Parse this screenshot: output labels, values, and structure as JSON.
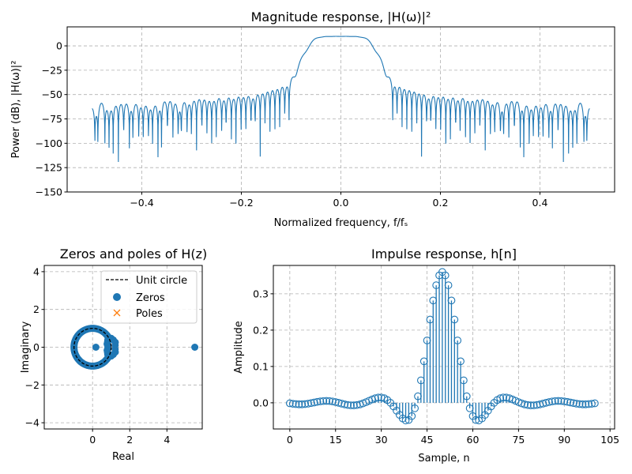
{
  "chart_data": [
    {
      "type": "line",
      "title": "Magnitude response, |H(ω)|²",
      "xlabel": "Normalized frequency, f/fₛ",
      "ylabel": "Power (dB), |H(ω)|²",
      "xlim": [
        -0.55,
        0.55
      ],
      "ylim": [
        -150,
        19.5
      ],
      "xticks": [
        -0.4,
        -0.2,
        0.0,
        0.2,
        0.4
      ],
      "xtick_labels": [
        "−0.4",
        "−0.2",
        "0.0",
        "0.2",
        "0.4"
      ],
      "yticks": [
        0,
        -25,
        -50,
        -75,
        -100,
        -125,
        -150
      ],
      "ytick_labels": [
        "0",
        "−25",
        "−50",
        "−75",
        "−100",
        "−125",
        "−150"
      ],
      "x_range": [
        -0.5,
        0.5
      ],
      "grid": true,
      "color": "#1f77b4"
    },
    {
      "type": "scatter",
      "title": "Zeros and poles of H(z)",
      "xlabel": "Real",
      "ylabel": "Imaginary",
      "xlim": [
        -2.6,
        5.9
      ],
      "ylim": [
        -4.33,
        4.33
      ],
      "xticks": [
        0,
        2,
        4
      ],
      "xtick_labels": [
        "0",
        "2",
        "4"
      ],
      "yticks": [
        4,
        2,
        0,
        -2,
        -4
      ],
      "ytick_labels": [
        "4",
        "2",
        "0",
        "−2",
        "−4"
      ],
      "grid": true,
      "legend": {
        "placement": "upper-right",
        "entries": [
          "Unit circle",
          "Zeros",
          "Poles"
        ]
      },
      "colors": {
        "zeros": "#1f77b4",
        "poles": "#ff7f0e",
        "unit_circle": "#000000"
      },
      "zeros_conjugate_pairs_polar_deg": [
        [
          0.82,
          5
        ],
        [
          1.22,
          5
        ],
        [
          0.8,
          12
        ],
        [
          1.25,
          12
        ],
        [
          0.85,
          19
        ],
        [
          1.18,
          19
        ],
        [
          0.9,
          25
        ],
        [
          1.11,
          25
        ],
        [
          1,
          28.8
        ],
        [
          1,
          32.4
        ],
        [
          1,
          36
        ],
        [
          1,
          39.6
        ],
        [
          1,
          43.2
        ],
        [
          1,
          46.8
        ],
        [
          1,
          50.4
        ],
        [
          1,
          54
        ],
        [
          1,
          57.6
        ],
        [
          1,
          61.2
        ],
        [
          1,
          64.8
        ],
        [
          1,
          68.4
        ],
        [
          1,
          72
        ],
        [
          1,
          75.6
        ],
        [
          1,
          79.2
        ],
        [
          1,
          82.8
        ],
        [
          1,
          86.4
        ],
        [
          1,
          90
        ],
        [
          1,
          93.6
        ],
        [
          1,
          97.2
        ],
        [
          1,
          100.8
        ],
        [
          1,
          104.4
        ],
        [
          1,
          108
        ],
        [
          1,
          111.6
        ],
        [
          1,
          115.2
        ],
        [
          1,
          118.8
        ],
        [
          1,
          122.4
        ],
        [
          1,
          126
        ],
        [
          1,
          129.6
        ],
        [
          1,
          133.2
        ],
        [
          1,
          136.8
        ],
        [
          1,
          140.4
        ],
        [
          1,
          144
        ],
        [
          1,
          147.6
        ],
        [
          1,
          151.2
        ],
        [
          1,
          154.8
        ],
        [
          1,
          158.4
        ],
        [
          1,
          162
        ],
        [
          1,
          165.6
        ],
        [
          1,
          169.2
        ],
        [
          1,
          172.8
        ],
        [
          1,
          176.4
        ]
      ],
      "zeros_real": [
        0.18,
        5.5,
        -1.0
      ],
      "poles": []
    },
    {
      "type": "stem",
      "title": "Impulse response, h[n]",
      "xlabel": "Sample, n",
      "ylabel": "Amplitude",
      "xlim": [
        -5.4,
        106.5
      ],
      "ylim": [
        -0.072,
        0.378
      ],
      "xticks": [
        0,
        15,
        30,
        45,
        60,
        75,
        90,
        105
      ],
      "xtick_labels": [
        "0",
        "15",
        "30",
        "45",
        "60",
        "75",
        "90",
        "105"
      ],
      "yticks": [
        0.0,
        0.1,
        0.2,
        0.3
      ],
      "ytick_labels": [
        "0.0",
        "0.1",
        "0.2",
        "0.3"
      ],
      "grid": true,
      "color": "#1f77b4",
      "values": [
        -0.0014,
        -0.0027,
        -0.0036,
        -0.0041,
        -0.0041,
        -0.0035,
        -0.0023,
        -0.0008,
        0.0009,
        0.0025,
        0.0039,
        0.0048,
        0.0051,
        0.0048,
        0.0037,
        0.002,
        0,
        -0.0022,
        -0.0043,
        -0.0059,
        -0.0069,
        -0.0071,
        -0.0062,
        -0.0044,
        -0.0016,
        0.0018,
        0.0056,
        0.0093,
        0.0125,
        0.0144,
        0.0146,
        0.0125,
        0.0076,
        0,
        -0.01,
        -0.0216,
        -0.0333,
        -0.0431,
        -0.0486,
        -0.0472,
        -0.0366,
        -0.0151,
        0.0179,
        0.0618,
        0.1142,
        0.1716,
        0.2291,
        0.2816,
        0.3235,
        0.3506,
        0.36,
        0.3506,
        0.3235,
        0.2816,
        0.2291,
        0.1716,
        0.1142,
        0.0618,
        0.0179,
        -0.0151,
        -0.0366,
        -0.0472,
        -0.0486,
        -0.0431,
        -0.0333,
        -0.0216,
        -0.01,
        0,
        0.0076,
        0.0125,
        0.0146,
        0.0144,
        0.0125,
        0.0093,
        0.0056,
        0.0018,
        -0.0016,
        -0.0044,
        -0.0062,
        -0.0071,
        -0.0069,
        -0.0059,
        -0.0043,
        -0.0022,
        0,
        0.002,
        0.0037,
        0.0048,
        0.0051,
        0.0048,
        0.0039,
        0.0025,
        0.0009,
        -0.0008,
        -0.0023,
        -0.0035,
        -0.0041,
        -0.0041,
        -0.0036,
        -0.0027,
        -0.0014
      ]
    }
  ]
}
